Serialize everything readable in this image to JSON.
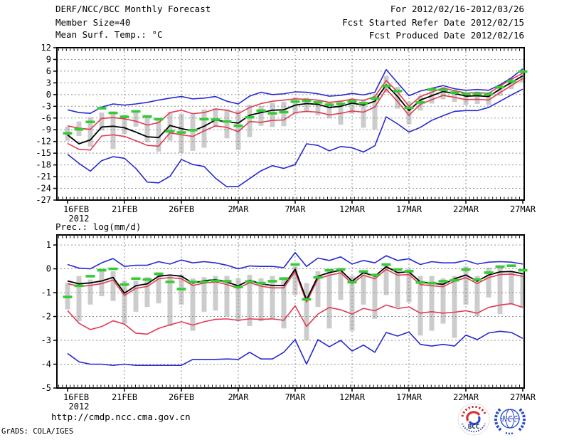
{
  "header": {
    "title": "DERF/NCC/BCC Monthly Forecast",
    "member_size": "Member Size=40",
    "for_range": "For 2012/02/16-2012/03/26",
    "refer_date": "Fcst Started Refer Date 2012/02/15",
    "produced_date": "Fcst Produced Date 2012/02/16"
  },
  "colors": {
    "blue": "#2629d0",
    "red": "#e23b50",
    "black": "#000000",
    "green": "#33cc33",
    "gray": "#cccccc",
    "grid": "#909090",
    "logo_red": "#d63031",
    "logo_blue": "#2747c9",
    "logo_navy": "#16246e"
  },
  "footer": {
    "url": "http://cmdp.ncc.cma.gov.cn",
    "grads_credit": "GrADS: COLA/IGES",
    "logos": [
      {
        "name": "bcc-logo",
        "label": "BCC"
      },
      {
        "name": "ncc-logo",
        "label": "NCC"
      }
    ]
  },
  "chart_data": [
    {
      "type": "line",
      "panel_name": "temperature-panel",
      "title": "Mean Surf. Temp.: °C",
      "ylabel": "°C",
      "x_tick_labels": [
        "16FEB",
        "21FEB",
        "26FEB",
        "2MAR",
        "7MAR",
        "12MAR",
        "17MAR",
        "22MAR",
        "27MAR"
      ],
      "x_tick_positions": [
        0,
        5,
        10,
        15,
        20,
        25,
        30,
        35,
        40
      ],
      "x_sub_label": "2012",
      "n_points": 41,
      "ylim": [
        -27,
        12
      ],
      "yticks": [
        12,
        9,
        6,
        3,
        0,
        -3,
        -6,
        -9,
        -12,
        -15,
        -18,
        -21,
        -24,
        -27
      ],
      "ytick_labels": [
        "12",
        "9",
        "6",
        "3",
        "0",
        "-3",
        "-6",
        "-9",
        "-12",
        "-15",
        "-18",
        "-21",
        "-24",
        "-27"
      ],
      "grid": true,
      "series": [
        {
          "name": "ensemble-max",
          "color": "blue",
          "values": [
            -3.9,
            -4.6,
            -4.8,
            -3.2,
            -2.4,
            -2.7,
            -2.4,
            -2.0,
            -1.4,
            -0.9,
            -0.5,
            -1.1,
            -0.9,
            -0.5,
            -1.7,
            -2.4,
            -0.4,
            0.6,
            0.0,
            0.2,
            0.7,
            0.6,
            0.2,
            -0.4,
            -0.2,
            0.3,
            -0.1,
            0.6,
            6.4,
            3.0,
            -0.3,
            0.9,
            1.6,
            2.3,
            1.5,
            1.1,
            1.3,
            1.1,
            2.5,
            4.3,
            6.6
          ]
        },
        {
          "name": "upper-spread",
          "color": "red",
          "values": [
            -8.0,
            -8.6,
            -8.9,
            -6.1,
            -5.9,
            -6.2,
            -6.8,
            -7.8,
            -7.2,
            -4.6,
            -4.0,
            -4.9,
            -4.6,
            -3.7,
            -4.0,
            -4.9,
            -3.3,
            -2.3,
            -1.7,
            -1.4,
            -1.1,
            -1.2,
            -1.4,
            -2.0,
            -1.7,
            -1.2,
            -1.5,
            -0.5,
            3.6,
            0.7,
            -3.0,
            -0.5,
            0.6,
            1.7,
            1.0,
            0.4,
            0.5,
            0.3,
            2.2,
            3.9,
            5.5
          ]
        },
        {
          "name": "ensemble-mean",
          "color": "black",
          "values": [
            -10.3,
            -12.6,
            -11.6,
            -8.3,
            -8.1,
            -8.5,
            -9.6,
            -10.8,
            -11.0,
            -7.9,
            -8.7,
            -9.3,
            -8.1,
            -6.5,
            -7.0,
            -7.3,
            -5.3,
            -4.6,
            -4.0,
            -3.9,
            -2.7,
            -2.3,
            -2.5,
            -3.3,
            -3.0,
            -2.2,
            -2.7,
            -1.7,
            2.5,
            -0.5,
            -4.1,
            -1.4,
            -0.3,
            0.8,
            0.3,
            -0.4,
            -0.3,
            -0.5,
            1.4,
            3.1,
            4.8
          ]
        },
        {
          "name": "lower-spread",
          "color": "red",
          "values": [
            -12.5,
            -14.0,
            -14.2,
            -10.6,
            -10.3,
            -10.7,
            -11.8,
            -13.0,
            -13.2,
            -9.8,
            -10.3,
            -10.7,
            -9.3,
            -8.0,
            -8.4,
            -9.5,
            -6.9,
            -7.1,
            -6.6,
            -6.5,
            -4.6,
            -4.3,
            -4.5,
            -5.2,
            -4.8,
            -4.2,
            -4.5,
            -3.2,
            1.4,
            -1.8,
            -5.3,
            -2.5,
            -1.3,
            -0.2,
            -0.7,
            -1.3,
            -1.2,
            -1.4,
            0.5,
            2.3,
            4.1
          ]
        },
        {
          "name": "ensemble-min",
          "color": "blue",
          "values": [
            -15.3,
            -17.6,
            -19.6,
            -16.9,
            -15.9,
            -16.3,
            -18.9,
            -22.4,
            -22.6,
            -20.9,
            -16.6,
            -17.9,
            -18.4,
            -21.4,
            -23.6,
            -23.5,
            -21.5,
            -19.5,
            -18.2,
            -18.9,
            -17.9,
            -12.6,
            -13.0,
            -14.4,
            -13.3,
            -13.6,
            -14.7,
            -13.1,
            -5.7,
            -7.5,
            -9.6,
            -8.4,
            -6.6,
            -5.4,
            -4.3,
            -4.1,
            -4.1,
            -3.3,
            -1.7,
            -0.1,
            1.4
          ]
        }
      ],
      "observation_dashes": {
        "name": "observation",
        "color": "green",
        "values": [
          -9.9,
          -8.9,
          -7.0,
          -3.5,
          -4.7,
          -5.7,
          -4.3,
          -5.6,
          -6.3,
          -9.4,
          -9.7,
          -9.1,
          -6.3,
          -6.4,
          -6.9,
          -8.0,
          -5.8,
          -4.1,
          -4.8,
          -4.5,
          -1.8,
          -1.6,
          -2.0,
          -2.6,
          -2.4,
          -1.8,
          -2.2,
          -1.0,
          2.2,
          0.9,
          -3.4,
          -2.0,
          1.3,
          1.2,
          0.5,
          0.2,
          0.2,
          0.1,
          1.9,
          3.4,
          5.9
        ]
      },
      "member_spread_bars": {
        "name": "member-spread",
        "color": "gray",
        "top": [
          -8.2,
          -6.9,
          -5.8,
          -4.6,
          -4.3,
          -5.1,
          -4.5,
          -5.3,
          -6.1,
          -4.4,
          -4.9,
          -5.1,
          -3.8,
          -3.5,
          -3.8,
          -4.0,
          -2.6,
          -2.9,
          -2.1,
          -1.8,
          -0.7,
          -0.8,
          -1.3,
          -1.8,
          -1.5,
          -0.9,
          -1.2,
          -0.2,
          4.8,
          2.0,
          -1.8,
          -0.3,
          1.0,
          1.9,
          1.2,
          0.6,
          0.8,
          0.7,
          2.6,
          4.3,
          6.1
        ],
        "bottom": [
          -11.8,
          -10.6,
          -13.3,
          -9.2,
          -13.9,
          -10.1,
          -8.2,
          -12.2,
          -14.6,
          -11.8,
          -15.0,
          -14.4,
          -13.6,
          -8.3,
          -11.2,
          -14.2,
          -10.9,
          -8.0,
          -8.3,
          -8.1,
          -5.1,
          -4.5,
          -5.3,
          -6.1,
          -7.7,
          -4.9,
          -8.5,
          -8.9,
          0.5,
          -3.6,
          -7.6,
          -4.1,
          -2.3,
          -1.2,
          -1.9,
          -2.6,
          -2.4,
          -2.7,
          -0.3,
          1.4,
          3.1
        ]
      }
    },
    {
      "type": "line",
      "panel_name": "precipitation-panel",
      "title": "Prec.: log(mm/d)",
      "ylabel": "log(mm/d)",
      "x_tick_labels": [
        "16FEB",
        "21FEB",
        "26FEB",
        "2MAR",
        "7MAR",
        "12MAR",
        "17MAR",
        "22MAR",
        "27MAR"
      ],
      "x_tick_positions": [
        0,
        5,
        10,
        15,
        20,
        25,
        30,
        35,
        40
      ],
      "x_sub_label": "2012",
      "n_points": 41,
      "ylim": [
        -5,
        1.42
      ],
      "yticks": [
        1,
        0,
        -1,
        -2,
        -3,
        -4,
        -5
      ],
      "ytick_labels": [
        "1",
        "0",
        "-1",
        "-2",
        "-3",
        "-4",
        "-5"
      ],
      "grid": true,
      "series": [
        {
          "name": "ensemble-max",
          "color": "blue",
          "values": [
            0.18,
            0.03,
            0.0,
            0.25,
            0.43,
            0.1,
            0.15,
            0.15,
            0.3,
            0.2,
            0.37,
            0.25,
            0.3,
            0.25,
            0.15,
            0.0,
            0.12,
            0.1,
            0.1,
            0.05,
            0.68,
            0.1,
            0.45,
            0.35,
            0.5,
            0.2,
            0.35,
            0.25,
            0.55,
            0.35,
            0.42,
            0.18,
            0.3,
            0.25,
            0.25,
            0.35,
            0.2,
            0.28,
            0.3,
            0.28,
            0.2
          ]
        },
        {
          "name": "upper-spread",
          "color": "red",
          "values": [
            -0.62,
            -0.74,
            -0.7,
            -0.62,
            -0.47,
            -1.12,
            -0.82,
            -0.74,
            -0.42,
            -0.37,
            -0.42,
            -0.7,
            -0.6,
            -0.55,
            -0.66,
            -0.81,
            -0.58,
            -0.73,
            -0.8,
            -0.8,
            -0.12,
            -1.4,
            -0.42,
            -0.27,
            -0.17,
            -0.62,
            -0.27,
            -0.42,
            -0.02,
            -0.27,
            -0.24,
            -0.66,
            -0.71,
            -0.75,
            -0.52,
            -0.37,
            -0.62,
            -0.37,
            -0.24,
            -0.22,
            -0.32
          ]
        },
        {
          "name": "ensemble-mean",
          "color": "black",
          "values": [
            -0.51,
            -0.63,
            -0.59,
            -0.51,
            -0.36,
            -1.02,
            -0.71,
            -0.63,
            -0.31,
            -0.26,
            -0.31,
            -0.6,
            -0.5,
            -0.45,
            -0.56,
            -0.71,
            -0.48,
            -0.63,
            -0.7,
            -0.7,
            -0.02,
            -1.3,
            -0.31,
            -0.16,
            -0.06,
            -0.52,
            -0.16,
            -0.31,
            0.09,
            -0.16,
            -0.13,
            -0.55,
            -0.61,
            -0.65,
            -0.42,
            -0.26,
            -0.52,
            -0.26,
            -0.13,
            -0.11,
            -0.21
          ]
        },
        {
          "name": "lower-spread",
          "color": "red",
          "values": [
            -1.75,
            -2.28,
            -2.55,
            -2.42,
            -2.18,
            -2.32,
            -2.7,
            -2.74,
            -2.5,
            -2.35,
            -2.22,
            -2.36,
            -2.22,
            -2.12,
            -2.1,
            -2.16,
            -2.1,
            -2.12,
            -2.1,
            -2.16,
            -1.55,
            -2.42,
            -1.9,
            -1.62,
            -1.72,
            -1.9,
            -1.66,
            -1.76,
            -1.52,
            -1.66,
            -1.6,
            -1.86,
            -1.8,
            -1.86,
            -1.82,
            -1.76,
            -1.86,
            -1.62,
            -1.52,
            -1.46,
            -1.62
          ]
        },
        {
          "name": "ensemble-min",
          "color": "blue",
          "values": [
            -3.55,
            -3.9,
            -4.0,
            -4.0,
            -4.05,
            -4.0,
            -4.05,
            -4.05,
            -4.05,
            -4.05,
            -4.05,
            -3.8,
            -3.8,
            -3.8,
            -3.78,
            -3.8,
            -3.5,
            -3.78,
            -3.78,
            -3.5,
            -2.97,
            -4.0,
            -2.97,
            -3.27,
            -3.0,
            -3.45,
            -3.2,
            -3.5,
            -2.67,
            -2.82,
            -2.65,
            -3.17,
            -3.24,
            -3.17,
            -3.24,
            -2.78,
            -2.97,
            -2.69,
            -2.62,
            -2.67,
            -2.92
          ]
        }
      ],
      "observation_dashes": {
        "name": "observation",
        "color": "green",
        "values": [
          -1.18,
          -0.71,
          -0.31,
          -0.06,
          0.0,
          -0.66,
          -0.41,
          -0.45,
          -0.21,
          -0.55,
          -0.85,
          -0.55,
          -0.55,
          -0.5,
          -0.52,
          -0.76,
          -0.53,
          -0.6,
          -0.52,
          -0.41,
          0.18,
          -1.28,
          -0.36,
          -0.06,
          -0.03,
          -0.56,
          -0.11,
          -0.26,
          0.18,
          -0.03,
          -0.1,
          -0.57,
          -0.6,
          -0.52,
          -0.48,
          -0.03,
          -0.45,
          -0.16,
          0.09,
          0.13,
          -0.06
        ]
      },
      "member_spread_bars": {
        "name": "member-spread",
        "color": "gray",
        "top": [
          -0.6,
          -0.3,
          -0.45,
          0.0,
          -0.1,
          -0.5,
          -0.5,
          -0.35,
          -0.15,
          -0.3,
          -0.25,
          -0.4,
          -0.35,
          -0.3,
          -0.3,
          -0.4,
          -0.25,
          -0.4,
          -0.3,
          -0.35,
          0.1,
          -0.6,
          -0.1,
          -0.05,
          0.05,
          -0.3,
          -0.1,
          -0.2,
          0.2,
          -0.1,
          0.0,
          -0.3,
          -0.3,
          -0.4,
          -0.3,
          0.1,
          -0.3,
          0.05,
          0.1,
          -0.1,
          -0.15
        ],
        "bottom": [
          -1.7,
          -2.2,
          -1.5,
          -1.15,
          -1.35,
          -2.3,
          -1.8,
          -1.6,
          -1.45,
          -2.4,
          -1.5,
          -2.6,
          -1.8,
          -1.75,
          -2.0,
          -2.2,
          -2.4,
          -2.2,
          -2.1,
          -2.5,
          -1.1,
          -3.0,
          -1.6,
          -2.5,
          -1.3,
          -2.6,
          -1.5,
          -2.1,
          -1.1,
          -1.6,
          -1.4,
          -2.8,
          -2.6,
          -2.3,
          -2.9,
          -1.5,
          -2.0,
          -1.2,
          -1.9,
          -1.5,
          -1.6
        ]
      }
    }
  ]
}
